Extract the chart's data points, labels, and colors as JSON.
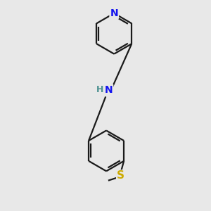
{
  "background_color": "#e8e8e8",
  "bond_color": "#1a1a1a",
  "N_color": "#1414ee",
  "S_color": "#ccaa00",
  "line_width": 1.6,
  "font_size": 10,
  "fig_size": [
    3.0,
    3.0
  ],
  "dpi": 100,
  "xlim": [
    -0.3,
    0.3
  ],
  "ylim": [
    -0.6,
    0.75
  ]
}
